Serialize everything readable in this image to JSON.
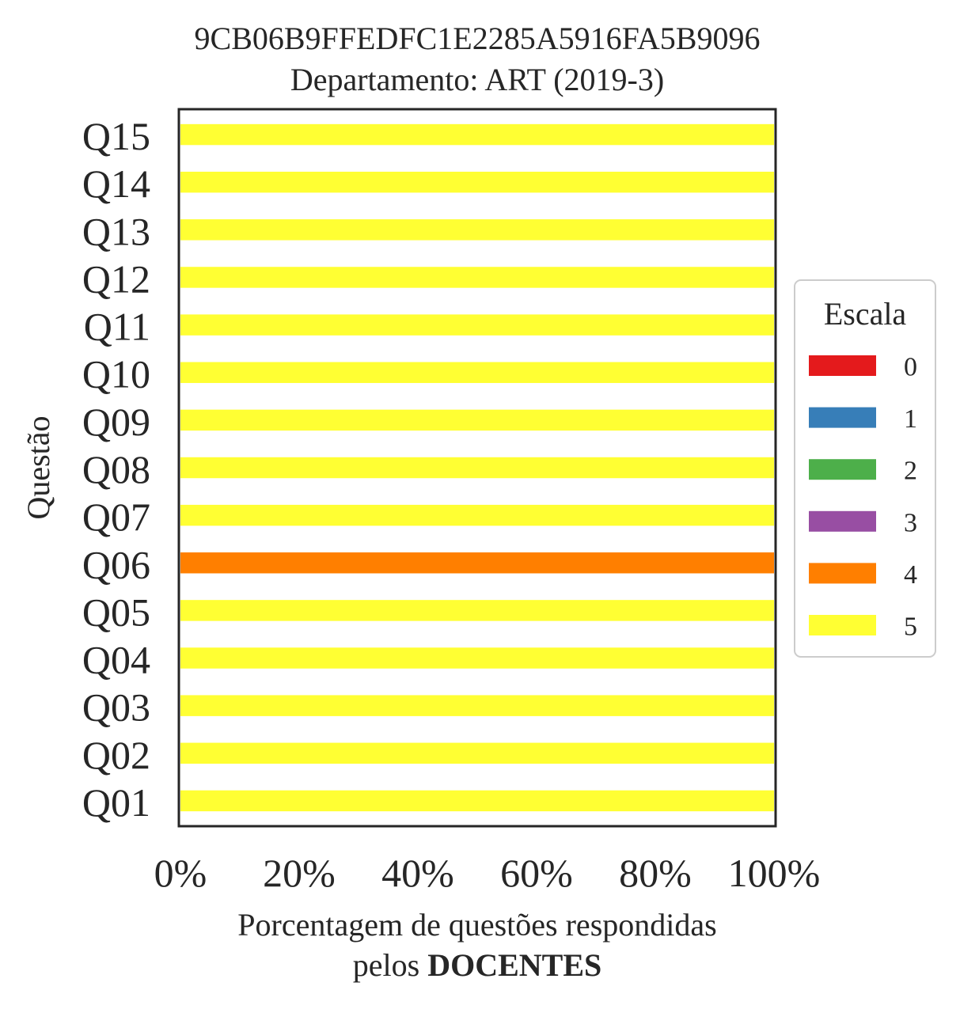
{
  "chart_data": {
    "type": "bar",
    "orientation": "horizontal",
    "stacked": true,
    "title": "9CB06B9FFEDFC1E2285A5916FA5B9096",
    "subtitle": "Departamento: ART (2019-3)",
    "xlabel_prefix": "Porcentagem de questões respondidas",
    "xlabel_suffix_plain": "pelos ",
    "xlabel_suffix_bold": "DOCENTES",
    "ylabel": "Questão",
    "xlim": [
      0,
      100
    ],
    "x_ticks": [
      0,
      20,
      40,
      60,
      80,
      100
    ],
    "x_tick_labels": [
      "0%",
      "20%",
      "40%",
      "60%",
      "80%",
      "100%"
    ],
    "categories": [
      "Q01",
      "Q02",
      "Q03",
      "Q04",
      "Q05",
      "Q06",
      "Q07",
      "Q08",
      "Q09",
      "Q10",
      "Q11",
      "Q12",
      "Q13",
      "Q14",
      "Q15"
    ],
    "series": [
      {
        "name": "0",
        "color": "#e41a1c",
        "values": [
          0,
          0,
          0,
          0,
          0,
          0,
          0,
          0,
          0,
          0,
          0,
          0,
          0,
          0,
          0
        ]
      },
      {
        "name": "1",
        "color": "#377eb8",
        "values": [
          0,
          0,
          0,
          0,
          0,
          0,
          0,
          0,
          0,
          0,
          0,
          0,
          0,
          0,
          0
        ]
      },
      {
        "name": "2",
        "color": "#4daf4a",
        "values": [
          0,
          0,
          0,
          0,
          0,
          0,
          0,
          0,
          0,
          0,
          0,
          0,
          0,
          0,
          0
        ]
      },
      {
        "name": "3",
        "color": "#984ea3",
        "values": [
          0,
          0,
          0,
          0,
          0,
          0,
          0,
          0,
          0,
          0,
          0,
          0,
          0,
          0,
          0
        ]
      },
      {
        "name": "4",
        "color": "#ff7f00",
        "values": [
          0,
          0,
          0,
          0,
          0,
          100,
          0,
          0,
          0,
          0,
          0,
          0,
          0,
          0,
          0
        ]
      },
      {
        "name": "5",
        "color": "#ffff33",
        "values": [
          100,
          100,
          100,
          100,
          100,
          0,
          100,
          100,
          100,
          100,
          100,
          100,
          100,
          100,
          100
        ]
      }
    ],
    "legend": {
      "title": "Escala",
      "placement": "right"
    },
    "grid": false
  }
}
